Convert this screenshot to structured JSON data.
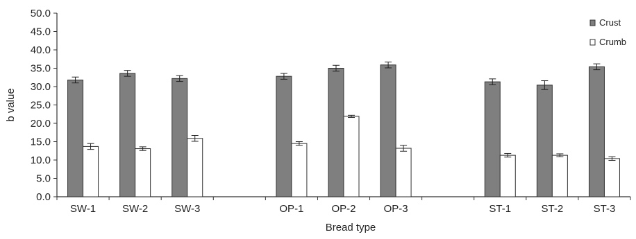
{
  "chart_data": {
    "type": "bar",
    "xlabel": "Bread type",
    "ylabel": "b value",
    "ylim": [
      0,
      50
    ],
    "yticks": [
      "0.0",
      "5.0",
      "10.0",
      "15.0",
      "20.0",
      "25.0",
      "30.0",
      "35.0",
      "40.0",
      "45.0",
      "50.0"
    ],
    "grid": false,
    "legend_position": "top-right",
    "categories": [
      "SW-1",
      "SW-2",
      "SW-3",
      "",
      "OP-1",
      "OP-2",
      "OP-3",
      "",
      "ST-1",
      "ST-2",
      "ST-3"
    ],
    "series": [
      {
        "name": "Crust",
        "color": "#7f7f7f",
        "values": [
          31.8,
          33.6,
          32.2,
          null,
          32.8,
          35.0,
          35.9,
          null,
          31.3,
          30.4,
          35.4
        ],
        "errors": [
          0.8,
          0.8,
          0.8,
          null,
          0.8,
          0.8,
          0.8,
          null,
          0.8,
          1.2,
          0.8
        ]
      },
      {
        "name": "Crumb",
        "color": "#ffffff",
        "values": [
          13.7,
          13.1,
          15.9,
          null,
          14.5,
          21.9,
          13.2,
          null,
          11.3,
          11.3,
          10.4
        ],
        "errors": [
          0.8,
          0.5,
          0.8,
          null,
          0.5,
          0.3,
          0.8,
          null,
          0.5,
          0.4,
          0.5
        ]
      }
    ]
  }
}
